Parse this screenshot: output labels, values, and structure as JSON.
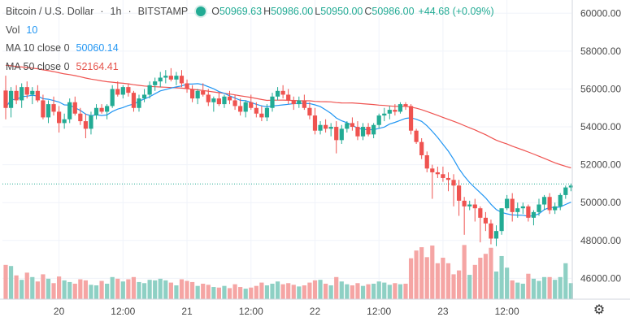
{
  "header": {
    "symbol": "Bitcoin / U.S. Dollar",
    "interval": "1h",
    "exchange": "BITSTAMP",
    "o_label": "O",
    "o_value": "50969.63",
    "h_label": "H",
    "h_value": "50986.00",
    "l_label": "L",
    "l_value": "50950.00",
    "c_label": "C",
    "c_value": "50986.00",
    "change": "+44.68 (+0.09%)",
    "vol_label": "Vol",
    "vol_value": "10",
    "ma10_label": "MA 10 close 0",
    "ma10_value": "50060.14",
    "ma50_label": "MA 50 close 0",
    "ma50_value": "52164.41"
  },
  "colors": {
    "up": "#22ab94",
    "down": "#ef5350",
    "vol_up": "#8ed0c4",
    "vol_down": "#f5a5a4",
    "ma10": "#2196f3",
    "ma50": "#ef5350",
    "grid": "#f0f3fa",
    "axis_text": "#4a4a4a",
    "last_price_line": "#22ab94"
  },
  "settings_icon": "gear-icon",
  "chart_data": {
    "type": "candlestick",
    "title": "Bitcoin / U.S. Dollar",
    "y_ticks": [
      "60000.00",
      "58000.00",
      "56000.00",
      "54000.00",
      "52000.00",
      "50000.00",
      "48000.00",
      "46000.00"
    ],
    "ylim": [
      44900,
      60700
    ],
    "x_ticks": [
      {
        "label": "20",
        "index": 10
      },
      {
        "label": "12:00",
        "index": 22
      },
      {
        "label": "21",
        "index": 34
      },
      {
        "label": "12:00",
        "index": 46
      },
      {
        "label": "22",
        "index": 58
      },
      {
        "label": "12:00",
        "index": 70
      },
      {
        "label": "23",
        "index": 82
      },
      {
        "label": "12:00",
        "index": 94
      }
    ],
    "last_price": 50986,
    "volume_max": 100,
    "candles": [
      [
        55920,
        56700,
        54400,
        55000,
        62
      ],
      [
        55000,
        56100,
        54500,
        55900,
        60
      ],
      [
        55900,
        56200,
        55200,
        55400,
        43
      ],
      [
        55400,
        56300,
        55000,
        56100,
        35
      ],
      [
        56100,
        56400,
        55500,
        55700,
        48
      ],
      [
        55700,
        56100,
        55200,
        55900,
        40
      ],
      [
        55900,
        56200,
        55300,
        55400,
        32
      ],
      [
        55400,
        55700,
        54400,
        54500,
        45
      ],
      [
        54500,
        55400,
        54200,
        55200,
        37
      ],
      [
        55200,
        55600,
        54600,
        54800,
        29
      ],
      [
        54800,
        55100,
        53700,
        54200,
        41
      ],
      [
        54200,
        54700,
        53900,
        54400,
        34
      ],
      [
        54400,
        55500,
        54200,
        55300,
        31
      ],
      [
        55300,
        55600,
        54600,
        54700,
        28
      ],
      [
        54700,
        55000,
        54100,
        54300,
        36
      ],
      [
        54300,
        54700,
        53400,
        53900,
        34
      ],
      [
        53900,
        54800,
        53600,
        54600,
        26
      ],
      [
        54600,
        55200,
        54400,
        55000,
        25
      ],
      [
        55000,
        55200,
        54700,
        54800,
        33
      ],
      [
        54800,
        55200,
        54400,
        55100,
        28
      ],
      [
        55100,
        56200,
        55000,
        56000,
        40
      ],
      [
        56000,
        56400,
        55600,
        55700,
        37
      ],
      [
        55700,
        56200,
        55500,
        56100,
        32
      ],
      [
        56100,
        56300,
        55600,
        55800,
        36
      ],
      [
        55800,
        55900,
        54800,
        55000,
        40
      ],
      [
        55000,
        55700,
        54800,
        55500,
        31
      ],
      [
        55500,
        56000,
        55300,
        55700,
        29
      ],
      [
        55700,
        56400,
        55500,
        56200,
        35
      ],
      [
        56200,
        56600,
        55900,
        56400,
        34
      ],
      [
        56400,
        56900,
        56100,
        56600,
        37
      ],
      [
        56600,
        57000,
        56300,
        56700,
        34
      ],
      [
        56700,
        57100,
        56400,
        56500,
        30
      ],
      [
        56500,
        56900,
        56200,
        56700,
        25
      ],
      [
        56700,
        57000,
        56100,
        56300,
        36
      ],
      [
        56300,
        56500,
        55800,
        56000,
        33
      ],
      [
        56000,
        56200,
        55300,
        55500,
        31
      ],
      [
        55500,
        56000,
        55200,
        55900,
        24
      ],
      [
        55900,
        56300,
        55600,
        55700,
        28
      ],
      [
        55700,
        56000,
        55100,
        55300,
        26
      ],
      [
        55300,
        55600,
        54800,
        55500,
        22
      ],
      [
        55500,
        55800,
        55100,
        55200,
        21
      ],
      [
        55200,
        55700,
        55000,
        55600,
        24
      ],
      [
        55600,
        55900,
        55200,
        55400,
        20
      ],
      [
        55400,
        55700,
        54900,
        55100,
        27
      ],
      [
        55100,
        55500,
        54600,
        54800,
        22
      ],
      [
        54800,
        55400,
        54500,
        55300,
        19
      ],
      [
        55300,
        55700,
        54900,
        55000,
        21
      ],
      [
        55000,
        55300,
        54500,
        54700,
        24
      ],
      [
        54700,
        55100,
        54300,
        54500,
        30
      ],
      [
        54500,
        55200,
        54300,
        55000,
        25
      ],
      [
        55000,
        55800,
        54800,
        55600,
        28
      ],
      [
        55600,
        56100,
        55400,
        55900,
        32
      ],
      [
        55900,
        56200,
        55500,
        55700,
        27
      ],
      [
        55700,
        56000,
        55200,
        55400,
        29
      ],
      [
        55400,
        55600,
        54900,
        55200,
        26
      ],
      [
        55200,
        55600,
        55000,
        55400,
        23
      ],
      [
        55400,
        55700,
        54900,
        55000,
        25
      ],
      [
        55000,
        55300,
        54400,
        54600,
        30
      ],
      [
        54600,
        55000,
        53600,
        53800,
        34
      ],
      [
        53800,
        54300,
        53600,
        54100,
        35
      ],
      [
        54100,
        54400,
        53700,
        53900,
        28
      ],
      [
        53900,
        54200,
        53500,
        54000,
        25
      ],
      [
        54000,
        54300,
        52600,
        53300,
        40
      ],
      [
        53300,
        54100,
        53100,
        53900,
        32
      ],
      [
        53900,
        54300,
        53700,
        54200,
        27
      ],
      [
        54200,
        54500,
        53800,
        54000,
        25
      ],
      [
        54000,
        54300,
        53300,
        53500,
        29
      ],
      [
        53500,
        54200,
        53300,
        54000,
        24
      ],
      [
        54000,
        54200,
        53500,
        53600,
        27
      ],
      [
        53600,
        54200,
        53400,
        54100,
        28
      ],
      [
        54100,
        54700,
        53900,
        54600,
        32
      ],
      [
        54600,
        55000,
        54300,
        54700,
        30
      ],
      [
        54700,
        55100,
        54400,
        54900,
        26
      ],
      [
        54900,
        55200,
        54600,
        54800,
        29
      ],
      [
        54800,
        55300,
        54700,
        55200,
        27
      ],
      [
        55200,
        55300,
        54900,
        55100,
        28
      ],
      [
        55100,
        55200,
        53600,
        53800,
        74
      ],
      [
        53800,
        53900,
        53100,
        53200,
        88
      ],
      [
        53200,
        53400,
        52300,
        52500,
        94
      ],
      [
        52500,
        52700,
        51600,
        51800,
        76
      ],
      [
        51800,
        52000,
        50200,
        51600,
        97
      ],
      [
        51600,
        51900,
        51300,
        51500,
        65
      ],
      [
        51500,
        51900,
        51100,
        51300,
        75
      ],
      [
        51300,
        51600,
        50600,
        51200,
        65
      ],
      [
        51200,
        51500,
        49800,
        50900,
        45
      ],
      [
        50900,
        51200,
        49300,
        50100,
        52
      ],
      [
        50100,
        50300,
        48300,
        49800,
        98
      ],
      [
        49800,
        50100,
        49600,
        49900,
        44
      ],
      [
        49900,
        50200,
        49000,
        49700,
        62
      ],
      [
        49700,
        49800,
        47900,
        49200,
        75
      ],
      [
        49200,
        49500,
        48500,
        48900,
        82
      ],
      [
        48900,
        49100,
        47800,
        48100,
        93
      ],
      [
        48100,
        48800,
        47700,
        48500,
        50
      ],
      [
        48500,
        49700,
        48300,
        49700,
        78
      ],
      [
        49700,
        50400,
        49600,
        50200,
        57
      ],
      [
        50200,
        50500,
        49000,
        49500,
        34
      ],
      [
        49500,
        50000,
        49200,
        49700,
        30
      ],
      [
        49700,
        50000,
        49400,
        49800,
        28
      ],
      [
        49800,
        49900,
        49000,
        49200,
        46
      ],
      [
        49200,
        49600,
        48800,
        49500,
        37
      ],
      [
        49500,
        50200,
        49300,
        49900,
        33
      ],
      [
        49900,
        50400,
        49600,
        50300,
        40
      ],
      [
        50300,
        50500,
        49400,
        49600,
        40
      ],
      [
        49600,
        50000,
        49400,
        49800,
        35
      ],
      [
        49800,
        50500,
        49600,
        50400,
        40
      ],
      [
        50400,
        50900,
        50200,
        50800,
        65
      ],
      [
        50800,
        51000,
        50600,
        50900,
        29
      ]
    ]
  }
}
